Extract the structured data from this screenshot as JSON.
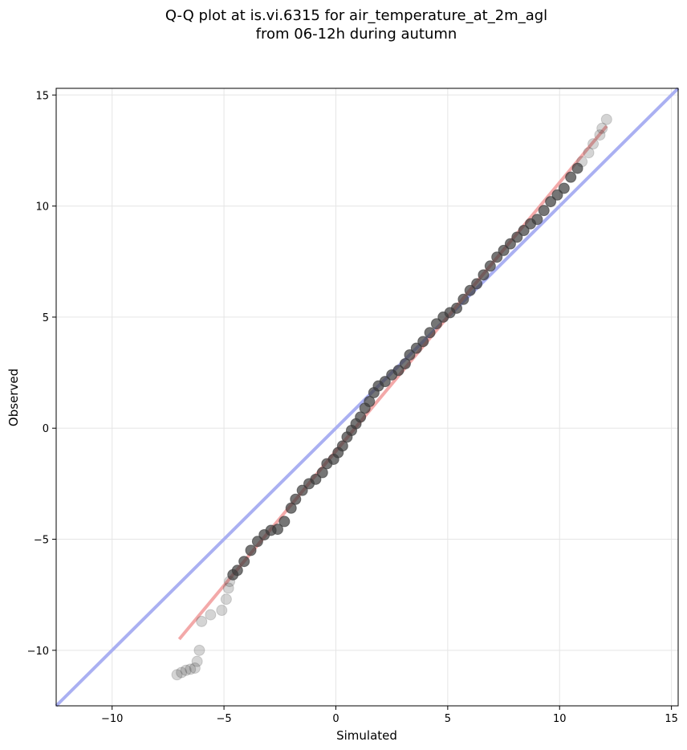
{
  "chart_data": {
    "type": "scatter",
    "title_lines": [
      "Q-Q plot at is.vi.6315 for air_temperature_at_2m_agl",
      "from 06-12h during autumn"
    ],
    "xlabel": "Simulated",
    "ylabel": "Observed",
    "xlim": [
      -12.5,
      15.3
    ],
    "ylim": [
      -12.5,
      15.3
    ],
    "xticks": [
      -10,
      -5,
      0,
      5,
      10,
      15
    ],
    "yticks": [
      -10,
      -5,
      0,
      5,
      10,
      15
    ],
    "tick_labels": [
      "−10",
      "−5",
      "0",
      "5",
      "10",
      "15"
    ],
    "grid": true,
    "reference_line": {
      "name": "1:1",
      "color": "#aab0f2",
      "x": [
        -12.5,
        15.3
      ],
      "y": [
        -12.5,
        15.3
      ]
    },
    "fit_line": {
      "color": "#f3a9a9",
      "x": [
        -7.0,
        12.1
      ],
      "y": [
        -9.5,
        13.6
      ]
    },
    "point_color": "#3a3a3a",
    "series": [
      {
        "values": [
          {
            "x": -7.1,
            "y": -11.1
          },
          {
            "x": -6.9,
            "y": -11.0
          },
          {
            "x": -6.7,
            "y": -10.9
          },
          {
            "x": -6.5,
            "y": -10.85
          },
          {
            "x": -6.3,
            "y": -10.8
          },
          {
            "x": -6.2,
            "y": -10.5
          },
          {
            "x": -6.1,
            "y": -10.0
          },
          {
            "x": -6.0,
            "y": -8.7
          },
          {
            "x": -5.6,
            "y": -8.4
          },
          {
            "x": -5.1,
            "y": -8.2
          },
          {
            "x": -4.9,
            "y": -7.7
          },
          {
            "x": -4.8,
            "y": -7.2
          },
          {
            "x": -4.75,
            "y": -6.9
          },
          {
            "x": -4.6,
            "y": -6.6
          },
          {
            "x": -4.4,
            "y": -6.4
          },
          {
            "x": -4.1,
            "y": -6.0
          },
          {
            "x": -3.8,
            "y": -5.5
          },
          {
            "x": -3.5,
            "y": -5.1
          },
          {
            "x": -3.2,
            "y": -4.8
          },
          {
            "x": -2.9,
            "y": -4.6
          },
          {
            "x": -2.6,
            "y": -4.55
          },
          {
            "x": -2.3,
            "y": -4.2
          },
          {
            "x": -2.0,
            "y": -3.6
          },
          {
            "x": -1.8,
            "y": -3.2
          },
          {
            "x": -1.5,
            "y": -2.8
          },
          {
            "x": -1.2,
            "y": -2.5
          },
          {
            "x": -0.9,
            "y": -2.3
          },
          {
            "x": -0.6,
            "y": -2.0
          },
          {
            "x": -0.4,
            "y": -1.6
          },
          {
            "x": -0.1,
            "y": -1.4
          },
          {
            "x": 0.1,
            "y": -1.1
          },
          {
            "x": 0.3,
            "y": -0.8
          },
          {
            "x": 0.5,
            "y": -0.4
          },
          {
            "x": 0.7,
            "y": -0.1
          },
          {
            "x": 0.9,
            "y": 0.2
          },
          {
            "x": 1.1,
            "y": 0.5
          },
          {
            "x": 1.3,
            "y": 0.9
          },
          {
            "x": 1.5,
            "y": 1.2
          },
          {
            "x": 1.7,
            "y": 1.6
          },
          {
            "x": 1.9,
            "y": 1.9
          },
          {
            "x": 2.2,
            "y": 2.1
          },
          {
            "x": 2.5,
            "y": 2.4
          },
          {
            "x": 2.8,
            "y": 2.6
          },
          {
            "x": 3.1,
            "y": 2.9
          },
          {
            "x": 3.3,
            "y": 3.3
          },
          {
            "x": 3.6,
            "y": 3.6
          },
          {
            "x": 3.9,
            "y": 3.9
          },
          {
            "x": 4.2,
            "y": 4.3
          },
          {
            "x": 4.5,
            "y": 4.7
          },
          {
            "x": 4.8,
            "y": 5.0
          },
          {
            "x": 5.1,
            "y": 5.2
          },
          {
            "x": 5.4,
            "y": 5.4
          },
          {
            "x": 5.7,
            "y": 5.8
          },
          {
            "x": 6.0,
            "y": 6.2
          },
          {
            "x": 6.3,
            "y": 6.5
          },
          {
            "x": 6.6,
            "y": 6.9
          },
          {
            "x": 6.9,
            "y": 7.3
          },
          {
            "x": 7.2,
            "y": 7.7
          },
          {
            "x": 7.5,
            "y": 8.0
          },
          {
            "x": 7.8,
            "y": 8.3
          },
          {
            "x": 8.1,
            "y": 8.6
          },
          {
            "x": 8.4,
            "y": 8.9
          },
          {
            "x": 8.7,
            "y": 9.2
          },
          {
            "x": 9.0,
            "y": 9.4
          },
          {
            "x": 9.3,
            "y": 9.8
          },
          {
            "x": 9.6,
            "y": 10.2
          },
          {
            "x": 9.9,
            "y": 10.5
          },
          {
            "x": 10.2,
            "y": 10.8
          },
          {
            "x": 10.5,
            "y": 11.3
          },
          {
            "x": 10.8,
            "y": 11.7
          },
          {
            "x": 11.0,
            "y": 12.0
          },
          {
            "x": 11.3,
            "y": 12.4
          },
          {
            "x": 11.5,
            "y": 12.8
          },
          {
            "x": 11.8,
            "y": 13.2
          },
          {
            "x": 11.9,
            "y": 13.5
          },
          {
            "x": 12.1,
            "y": 13.9
          }
        ]
      }
    ]
  }
}
